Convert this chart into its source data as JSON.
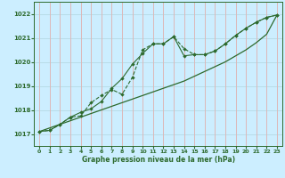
{
  "title": "Graphe pression niveau de la mer (hPa)",
  "bg_color": "#cceeff",
  "grid_color_h": "#b8dce8",
  "grid_color_v": "#ddb8b8",
  "line_color": "#2d6a2d",
  "xlim": [
    -0.5,
    23.5
  ],
  "ylim": [
    1016.5,
    1022.5
  ],
  "yticks": [
    1017,
    1018,
    1019,
    1020,
    1021,
    1022
  ],
  "xticks": [
    0,
    1,
    2,
    3,
    4,
    5,
    6,
    7,
    8,
    9,
    10,
    11,
    12,
    13,
    14,
    15,
    16,
    17,
    18,
    19,
    20,
    21,
    22,
    23
  ],
  "hours": [
    0,
    1,
    2,
    3,
    4,
    5,
    6,
    7,
    8,
    9,
    10,
    11,
    12,
    13,
    14,
    15,
    16,
    17,
    18,
    19,
    20,
    21,
    22,
    23
  ],
  "line_dashed": [
    1017.1,
    1017.15,
    1017.4,
    1017.7,
    1017.75,
    1018.3,
    1018.6,
    1018.85,
    1018.65,
    1019.35,
    1020.5,
    1020.75,
    1020.75,
    1021.05,
    1020.55,
    1020.3,
    1020.3,
    1020.45,
    1020.75,
    1021.1,
    1021.4,
    1021.65,
    1021.85,
    1021.95
  ],
  "line_solid": [
    1017.1,
    1017.15,
    1017.4,
    1017.7,
    1017.9,
    1018.05,
    1018.35,
    1018.9,
    1019.3,
    1019.9,
    1020.35,
    1020.75,
    1020.75,
    1021.05,
    1020.25,
    1020.3,
    1020.3,
    1020.45,
    1020.75,
    1021.1,
    1021.4,
    1021.65,
    1021.85,
    1021.95
  ],
  "trend": [
    1017.1,
    1017.25,
    1017.4,
    1017.55,
    1017.7,
    1017.85,
    1018.0,
    1018.15,
    1018.3,
    1018.45,
    1018.6,
    1018.75,
    1018.9,
    1019.05,
    1019.2,
    1019.4,
    1019.6,
    1019.8,
    1020.0,
    1020.25,
    1020.5,
    1020.8,
    1021.15,
    1021.95
  ]
}
